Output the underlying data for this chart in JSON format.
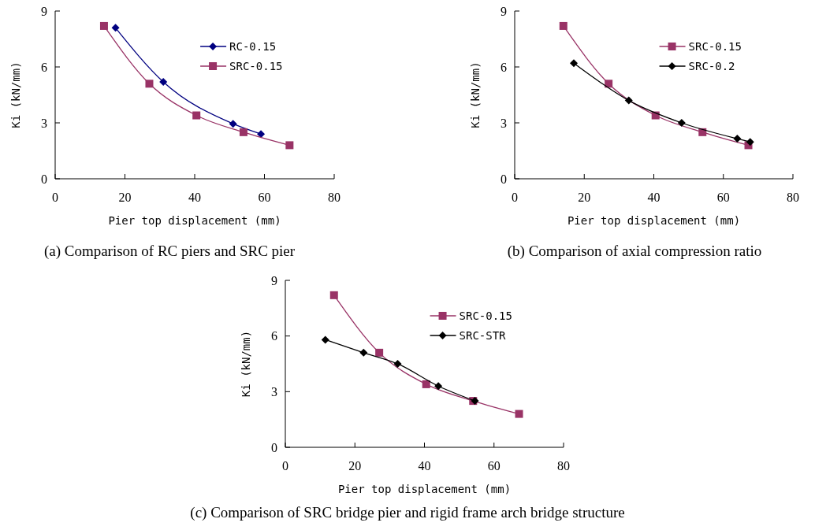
{
  "chart_data": [
    {
      "type": "line",
      "title": "(a) Comparison of RC piers and SRC pier",
      "xlabel": "Pier top displacement (mm)",
      "ylabel": "Ki (kN/mm)",
      "xlim": [
        0,
        80
      ],
      "xticks": [
        0,
        20,
        40,
        60,
        80
      ],
      "ylim": [
        0,
        9
      ],
      "yticks": [
        0,
        3,
        6,
        9
      ],
      "legend": "top right",
      "series": [
        {
          "name": "RC-0.15",
          "color": "#000080",
          "marker": "diamond",
          "x": [
            17.3,
            31,
            51,
            59
          ],
          "values": [
            8.1,
            5.2,
            2.95,
            2.4
          ]
        },
        {
          "name": "SRC-0.15",
          "color": "#993366",
          "marker": "square",
          "x": [
            14,
            27,
            40.5,
            54,
            67.2
          ],
          "values": [
            8.2,
            5.1,
            3.4,
            2.5,
            1.8
          ]
        }
      ]
    },
    {
      "type": "line",
      "title": "(b) Comparison of axial compression ratio",
      "xlabel": "Pier top displacement (mm)",
      "ylabel": "Ki (kN/mm)",
      "xlim": [
        0,
        80
      ],
      "xticks": [
        0,
        20,
        40,
        60,
        80
      ],
      "ylim": [
        0,
        9
      ],
      "yticks": [
        0,
        3,
        6,
        9
      ],
      "legend": "top right",
      "series": [
        {
          "name": "SRC-0.15",
          "color": "#993366",
          "marker": "square",
          "x": [
            14,
            27,
            40.5,
            54,
            67.2
          ],
          "values": [
            8.2,
            5.1,
            3.4,
            2.5,
            1.8
          ]
        },
        {
          "name": "SRC-0.2",
          "color": "#000000",
          "marker": "diamond",
          "x": [
            17,
            32.8,
            48,
            64,
            67.7
          ],
          "values": [
            6.2,
            4.2,
            3.0,
            2.15,
            1.98
          ]
        }
      ]
    },
    {
      "type": "line",
      "title": "(c) Comparison of SRC bridge pier and rigid frame arch bridge structure",
      "xlabel": "Pier top displacement (mm)",
      "ylabel": "Ki (kN/mm)",
      "xlim": [
        0,
        80
      ],
      "xticks": [
        0,
        20,
        40,
        60,
        80
      ],
      "ylim": [
        0,
        9
      ],
      "yticks": [
        0,
        3,
        6,
        9
      ],
      "legend": "top right",
      "series": [
        {
          "name": "SRC-0.15",
          "color": "#993366",
          "marker": "square",
          "x": [
            14,
            27,
            40.5,
            54,
            67.2
          ],
          "values": [
            8.2,
            5.1,
            3.4,
            2.5,
            1.8
          ]
        },
        {
          "name": "SRC-STR",
          "color": "#000000",
          "marker": "diamond",
          "x": [
            11.5,
            22.5,
            32.3,
            44,
            54.5
          ],
          "values": [
            5.8,
            5.1,
            4.5,
            3.3,
            2.5
          ]
        }
      ]
    }
  ]
}
